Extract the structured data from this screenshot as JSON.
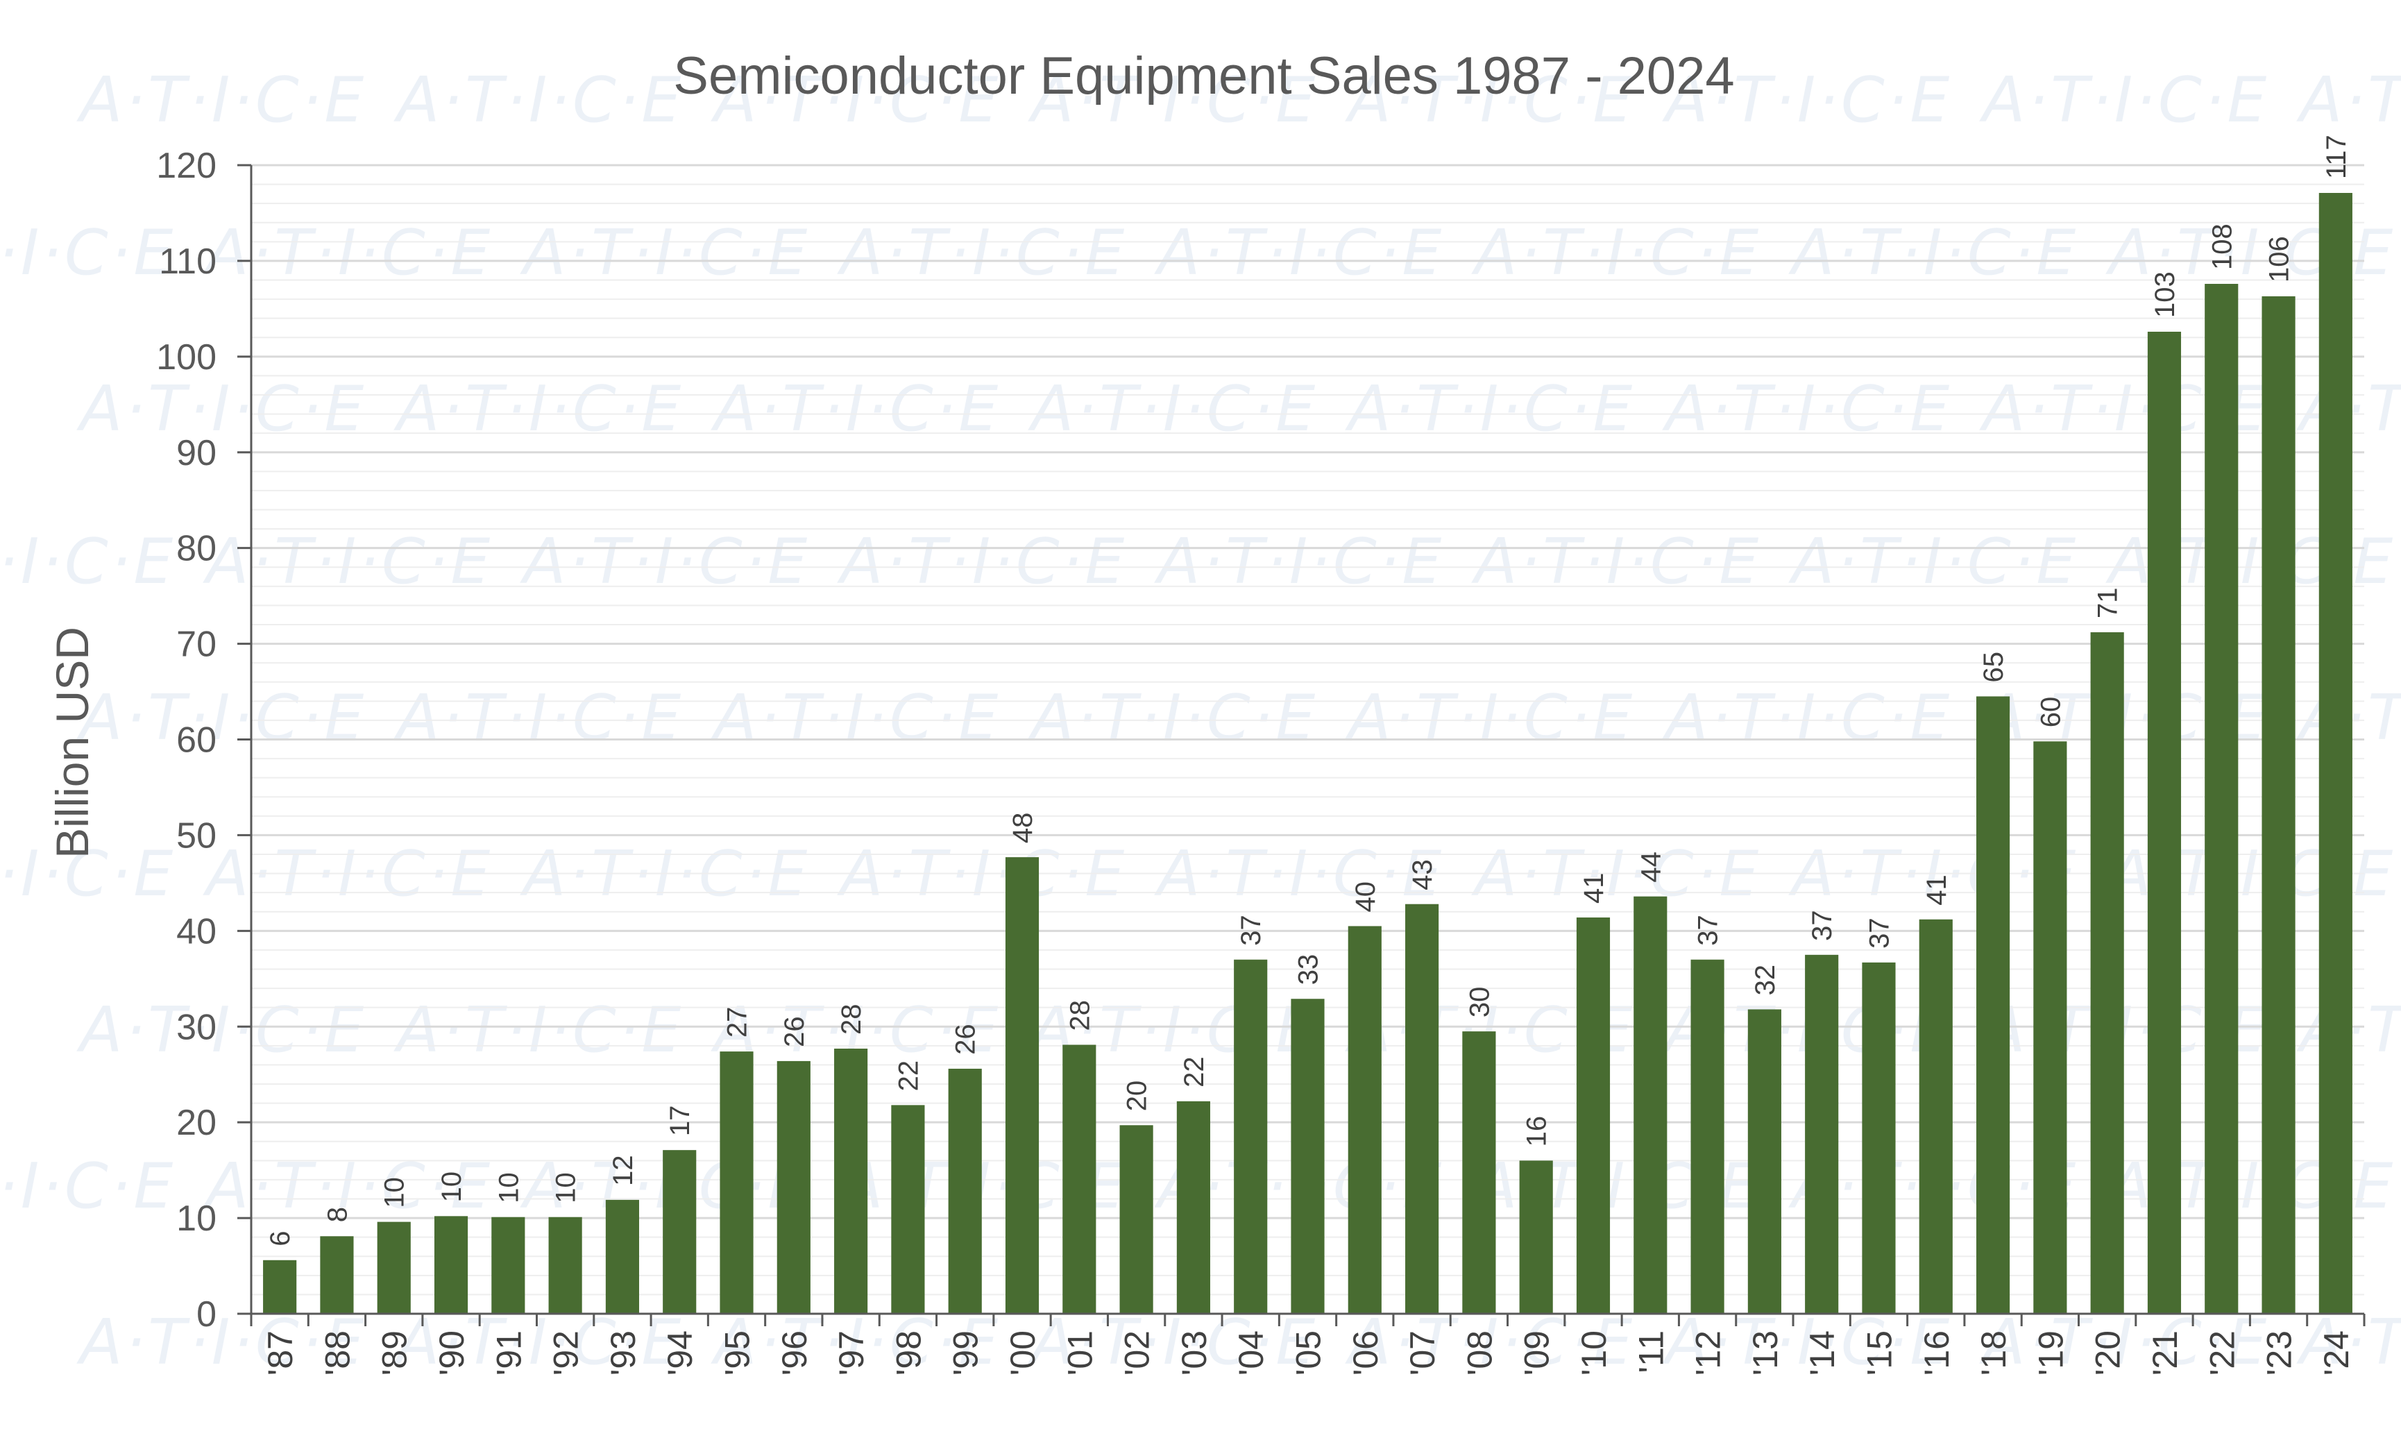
{
  "watermark": "A·T·I·C·E",
  "colors": {
    "bar": "#486c31",
    "major_grid": "#d9d9d9",
    "minor_grid": "#eeeeee",
    "axis": "#595959",
    "text": "#595959"
  },
  "chart_data": {
    "type": "bar",
    "title": "Semiconductor Equipment Sales 1987 - 2024",
    "xlabel": "",
    "ylabel": "Billion USD",
    "ylim": [
      0,
      120
    ],
    "ytick_step": 10,
    "minor_tick_step": 2,
    "grid": true,
    "legend": "none",
    "categories": [
      "'87",
      "'88",
      "'89",
      "'90",
      "'91",
      "'92",
      "'93",
      "'94",
      "'95",
      "'96",
      "'97",
      "'98",
      "'99",
      "'00",
      "'01",
      "'02",
      "'03",
      "'04",
      "'05",
      "'06",
      "'07",
      "'08",
      "'09",
      "'10",
      "'11",
      "'12",
      "'13",
      "'14",
      "'15",
      "'16",
      "'18",
      "'19",
      "'20",
      "'21",
      "'22",
      "'23",
      "'24"
    ],
    "values": [
      5.6,
      8.1,
      9.6,
      10.2,
      10.1,
      10.1,
      11.9,
      17.1,
      27.4,
      26.4,
      27.7,
      21.8,
      25.6,
      47.7,
      28.1,
      19.7,
      22.2,
      37.0,
      32.9,
      40.5,
      42.8,
      29.5,
      16.0,
      41.4,
      43.6,
      37.0,
      31.8,
      37.5,
      36.7,
      41.2,
      64.5,
      59.8,
      71.2,
      102.6,
      107.6,
      106.3,
      117.1
    ],
    "data_labels": [
      "6",
      "8",
      "10",
      "10",
      "10",
      "10",
      "12",
      "17",
      "27",
      "26",
      "28",
      "22",
      "26",
      "48",
      "28",
      "20",
      "22",
      "37",
      "33",
      "40",
      "43",
      "30",
      "16",
      "41",
      "44",
      "37",
      "32",
      "37",
      "37",
      "41",
      "65",
      "60",
      "71",
      "103",
      "108",
      "106",
      "117"
    ]
  }
}
